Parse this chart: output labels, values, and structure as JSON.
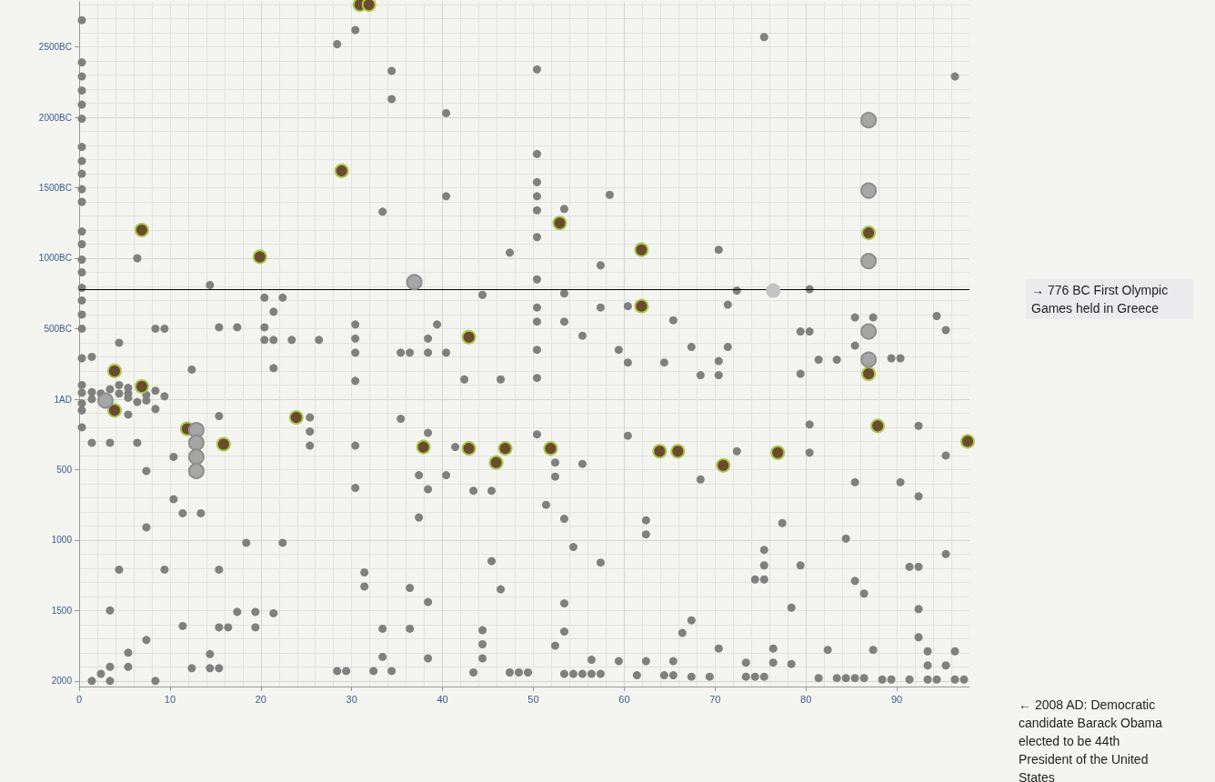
{
  "chart_data": {
    "type": "scatter",
    "marker": "circle",
    "grid": true,
    "xlim": [
      0,
      98
    ],
    "xticks": [
      0,
      10,
      20,
      30,
      40,
      50,
      60,
      70,
      80,
      90
    ],
    "ylim": [
      2040,
      -2820
    ],
    "yticks": [
      {
        "value": -2500,
        "label": "2500BC"
      },
      {
        "value": -2000,
        "label": "2000BC"
      },
      {
        "value": -1500,
        "label": "1500BC"
      },
      {
        "value": -1000,
        "label": "1000BC"
      },
      {
        "value": -500,
        "label": "500BC"
      },
      {
        "value": 1,
        "label": "1AD"
      },
      500,
      1000,
      1500,
      2000
    ],
    "ref_lines": [
      {
        "axis": "y",
        "value": -776,
        "label": "→ 776 BC First Olympic Games held in Greece",
        "color": "#000000"
      }
    ],
    "annotations": [
      "← 2008 AD: Democratic candidate Barack Obama elected to be 44th President of the United States"
    ],
    "series": [
      {
        "color": "#808080",
        "x": [
          0.3,
          0.3,
          0.3,
          0.3,
          0.3,
          0.3,
          0.3,
          0.3,
          0.3,
          0.3,
          0.3,
          0.3,
          0.3,
          0.3,
          0.3,
          0.3,
          0.3,
          0.3,
          0.3,
          0.3,
          0.3,
          0.3,
          0.3,
          0.3,
          0.3,
          28.4,
          30.4,
          6.4,
          14.4,
          20.4,
          22.4,
          21.4,
          8.4,
          9.4,
          15.4,
          17.4,
          20.4,
          30.4,
          4.4,
          20.4,
          21.4,
          23.4,
          26.4,
          30.4,
          30.4,
          34.4,
          34.4,
          40.4,
          50.4,
          50.4,
          50.4,
          50.4,
          50.4,
          50.4,
          50.4,
          40.4,
          33.4,
          53.4,
          58.4,
          47.4,
          57.4,
          44.4,
          53.4,
          50.4,
          57.4,
          60.4,
          50.4,
          53.4,
          65.4,
          39.4,
          38.4,
          55.4,
          35.4,
          36.4,
          38.4,
          40.4,
          50.4,
          59.4,
          75.4,
          96.4,
          70.4,
          72.4,
          80.4,
          71.4,
          85.4,
          87.4,
          94.4,
          95.4,
          79.4,
          80.4,
          85.4,
          67.4,
          71.4,
          1.4,
          12.4,
          21.4,
          30.4,
          1.4,
          1.4,
          2.4,
          3.4,
          4.4,
          4.4,
          5.4,
          5.4,
          5.4,
          7.4,
          7.4,
          6.4,
          8.4,
          9.4,
          8.4,
          5.4,
          1.4,
          3.4,
          6.4,
          15.4,
          25.4,
          25.4,
          25.4,
          30.4,
          30.4,
          10.4,
          7.4,
          10.4,
          11.4,
          13.4,
          7.4,
          18.4,
          22.4,
          4.4,
          9.4,
          15.4,
          31.4,
          31.4,
          3.4,
          17.4,
          19.4,
          21.4,
          11.4,
          15.4,
          16.4,
          19.4,
          7.4,
          5.4,
          14.4,
          3.4,
          5.4,
          12.4,
          14.4,
          15.4,
          28.4,
          29.4,
          32.4,
          2.4,
          1.4,
          3.4,
          8.4,
          60.4,
          64.4,
          42.4,
          46.4,
          50.4,
          35.4,
          38.4,
          50.4,
          60.4,
          41.4,
          52.4,
          55.4,
          52.4,
          37.4,
          40.4,
          38.4,
          43.4,
          45.4,
          51.4,
          37.4,
          53.4,
          62.4,
          62.4,
          54.4,
          45.4,
          57.4,
          36.4,
          46.4,
          38.4,
          53.4,
          33.4,
          36.4,
          44.4,
          53.4,
          44.4,
          52.4,
          33.4,
          38.4,
          44.4,
          56.4,
          59.4,
          62.4,
          65.4,
          34.4,
          43.4,
          47.4,
          48.4,
          49.4,
          53.4,
          54.4,
          55.4,
          56.4,
          57.4,
          61.4,
          64.4,
          65.4,
          70.4,
          68.4,
          70.4,
          79.4,
          81.4,
          83.4,
          89.4,
          90.4,
          80.4,
          92.4,
          72.4,
          80.4,
          95.4,
          68.4,
          85.4,
          90.4,
          92.4,
          77.4,
          84.4,
          75.4,
          75.4,
          79.4,
          91.4,
          92.4,
          95.4,
          74.4,
          75.4,
          85.4,
          86.4,
          78.4,
          92.4,
          67.4,
          66.4,
          92.4,
          70.4,
          76.4,
          82.4,
          87.4,
          93.4,
          96.4,
          73.4,
          76.4,
          78.4,
          93.4,
          95.4,
          67.4,
          69.4,
          73.4,
          74.4,
          75.4,
          81.4,
          83.4,
          84.4,
          85.4,
          86.4,
          88.4,
          89.4,
          91.4,
          93.4,
          94.4,
          96.4,
          97.4
        ],
        "values": [
          -2690,
          -2390,
          -2290,
          -2190,
          -2090,
          -1990,
          -1790,
          -1690,
          -1600,
          -1490,
          -1400,
          -1190,
          -1100,
          -990,
          -900,
          -790,
          -700,
          -600,
          -500,
          -290,
          -100,
          -45,
          30,
          80,
          200,
          -2520,
          -2620,
          -1000,
          -810,
          -720,
          -720,
          -620,
          -500,
          -500,
          -510,
          -510,
          -510,
          -530,
          -400,
          -420,
          -420,
          -420,
          -420,
          -430,
          -330,
          -2330,
          -2130,
          -2030,
          -2340,
          -1740,
          -1540,
          -1440,
          -1340,
          -1150,
          -850,
          -1440,
          -1330,
          -1350,
          -1450,
          -1040,
          -950,
          -740,
          -750,
          -650,
          -650,
          -660,
          -550,
          -550,
          -560,
          -530,
          -430,
          -450,
          -330,
          -330,
          -330,
          -330,
          -350,
          -350,
          -2570,
          -2290,
          -1060,
          -770,
          -780,
          -670,
          -580,
          -580,
          -590,
          -490,
          -480,
          -480,
          -380,
          -370,
          -370,
          -300,
          -210,
          -220,
          -130,
          -50,
          0,
          -40,
          -70,
          -100,
          -40,
          -80,
          -40,
          -10,
          -30,
          10,
          20,
          -60,
          -20,
          70,
          110,
          310,
          310,
          310,
          120,
          130,
          230,
          330,
          330,
          630,
          410,
          510,
          710,
          810,
          810,
          910,
          1020,
          1020,
          1210,
          1210,
          1210,
          1230,
          1330,
          1500,
          1510,
          1510,
          1520,
          1610,
          1620,
          1620,
          1620,
          1710,
          1800,
          1810,
          1900,
          1900,
          1910,
          1910,
          1910,
          1930,
          1930,
          1930,
          1950,
          2000,
          2000,
          2000,
          -260,
          -260,
          -140,
          -140,
          -150,
          140,
          240,
          250,
          260,
          340,
          450,
          460,
          550,
          540,
          540,
          640,
          650,
          650,
          750,
          840,
          850,
          860,
          960,
          1050,
          1150,
          1160,
          1340,
          1350,
          1440,
          1450,
          1630,
          1630,
          1640,
          1650,
          1740,
          1750,
          1830,
          1840,
          1840,
          1850,
          1860,
          1860,
          1860,
          1930,
          1940,
          1940,
          1940,
          1940,
          1950,
          1950,
          1950,
          1950,
          1950,
          1960,
          1960,
          1960,
          -270,
          -170,
          -170,
          -180,
          -280,
          -280,
          -290,
          -290,
          180,
          190,
          370,
          380,
          400,
          570,
          590,
          590,
          690,
          880,
          990,
          1070,
          1180,
          1180,
          1190,
          1190,
          1100,
          1280,
          1280,
          1290,
          1380,
          1480,
          1490,
          1570,
          1660,
          1690,
          1770,
          1770,
          1780,
          1780,
          1790,
          1790,
          1870,
          1870,
          1880,
          1890,
          1890,
          1970,
          1970,
          1970,
          1970,
          1970,
          1980,
          1980,
          1980,
          1980,
          1980,
          1990,
          1990,
          1990,
          1990,
          1990,
          1990,
          1990
        ]
      },
      {
        "color": "#6b4a2e",
        "x": [
          30.9,
          31.9,
          28.9,
          6.9,
          19.9,
          52.9,
          61.9,
          61.9,
          42.9,
          86.9,
          3.9,
          6.9,
          3.9,
          23.9,
          11.9,
          15.9,
          37.9,
          42.9,
          46.9,
          45.9,
          51.9,
          63.9,
          65.9,
          86.9,
          87.9,
          97.8,
          76.9,
          70.9
        ],
        "values": [
          -2800,
          -2800,
          -1620,
          -1200,
          -1010,
          -1250,
          -1060,
          -660,
          -440,
          -1180,
          -200,
          -90,
          80,
          130,
          210,
          320,
          340,
          350,
          350,
          450,
          350,
          370,
          370,
          -180,
          190,
          300,
          380,
          470
        ]
      },
      {
        "color": "#a6a6a6",
        "x": [
          36.9,
          86.9,
          86.9,
          86.9,
          86.9,
          86.9,
          2.9,
          12.9,
          12.9,
          12.9,
          12.9
        ],
        "values": [
          -830,
          -1980,
          -1480,
          -980,
          -480,
          -280,
          10,
          220,
          310,
          410,
          510
        ]
      },
      {
        "color": "#c4c4c4",
        "x": [
          76.4
        ],
        "values": [
          -770
        ]
      }
    ]
  }
}
